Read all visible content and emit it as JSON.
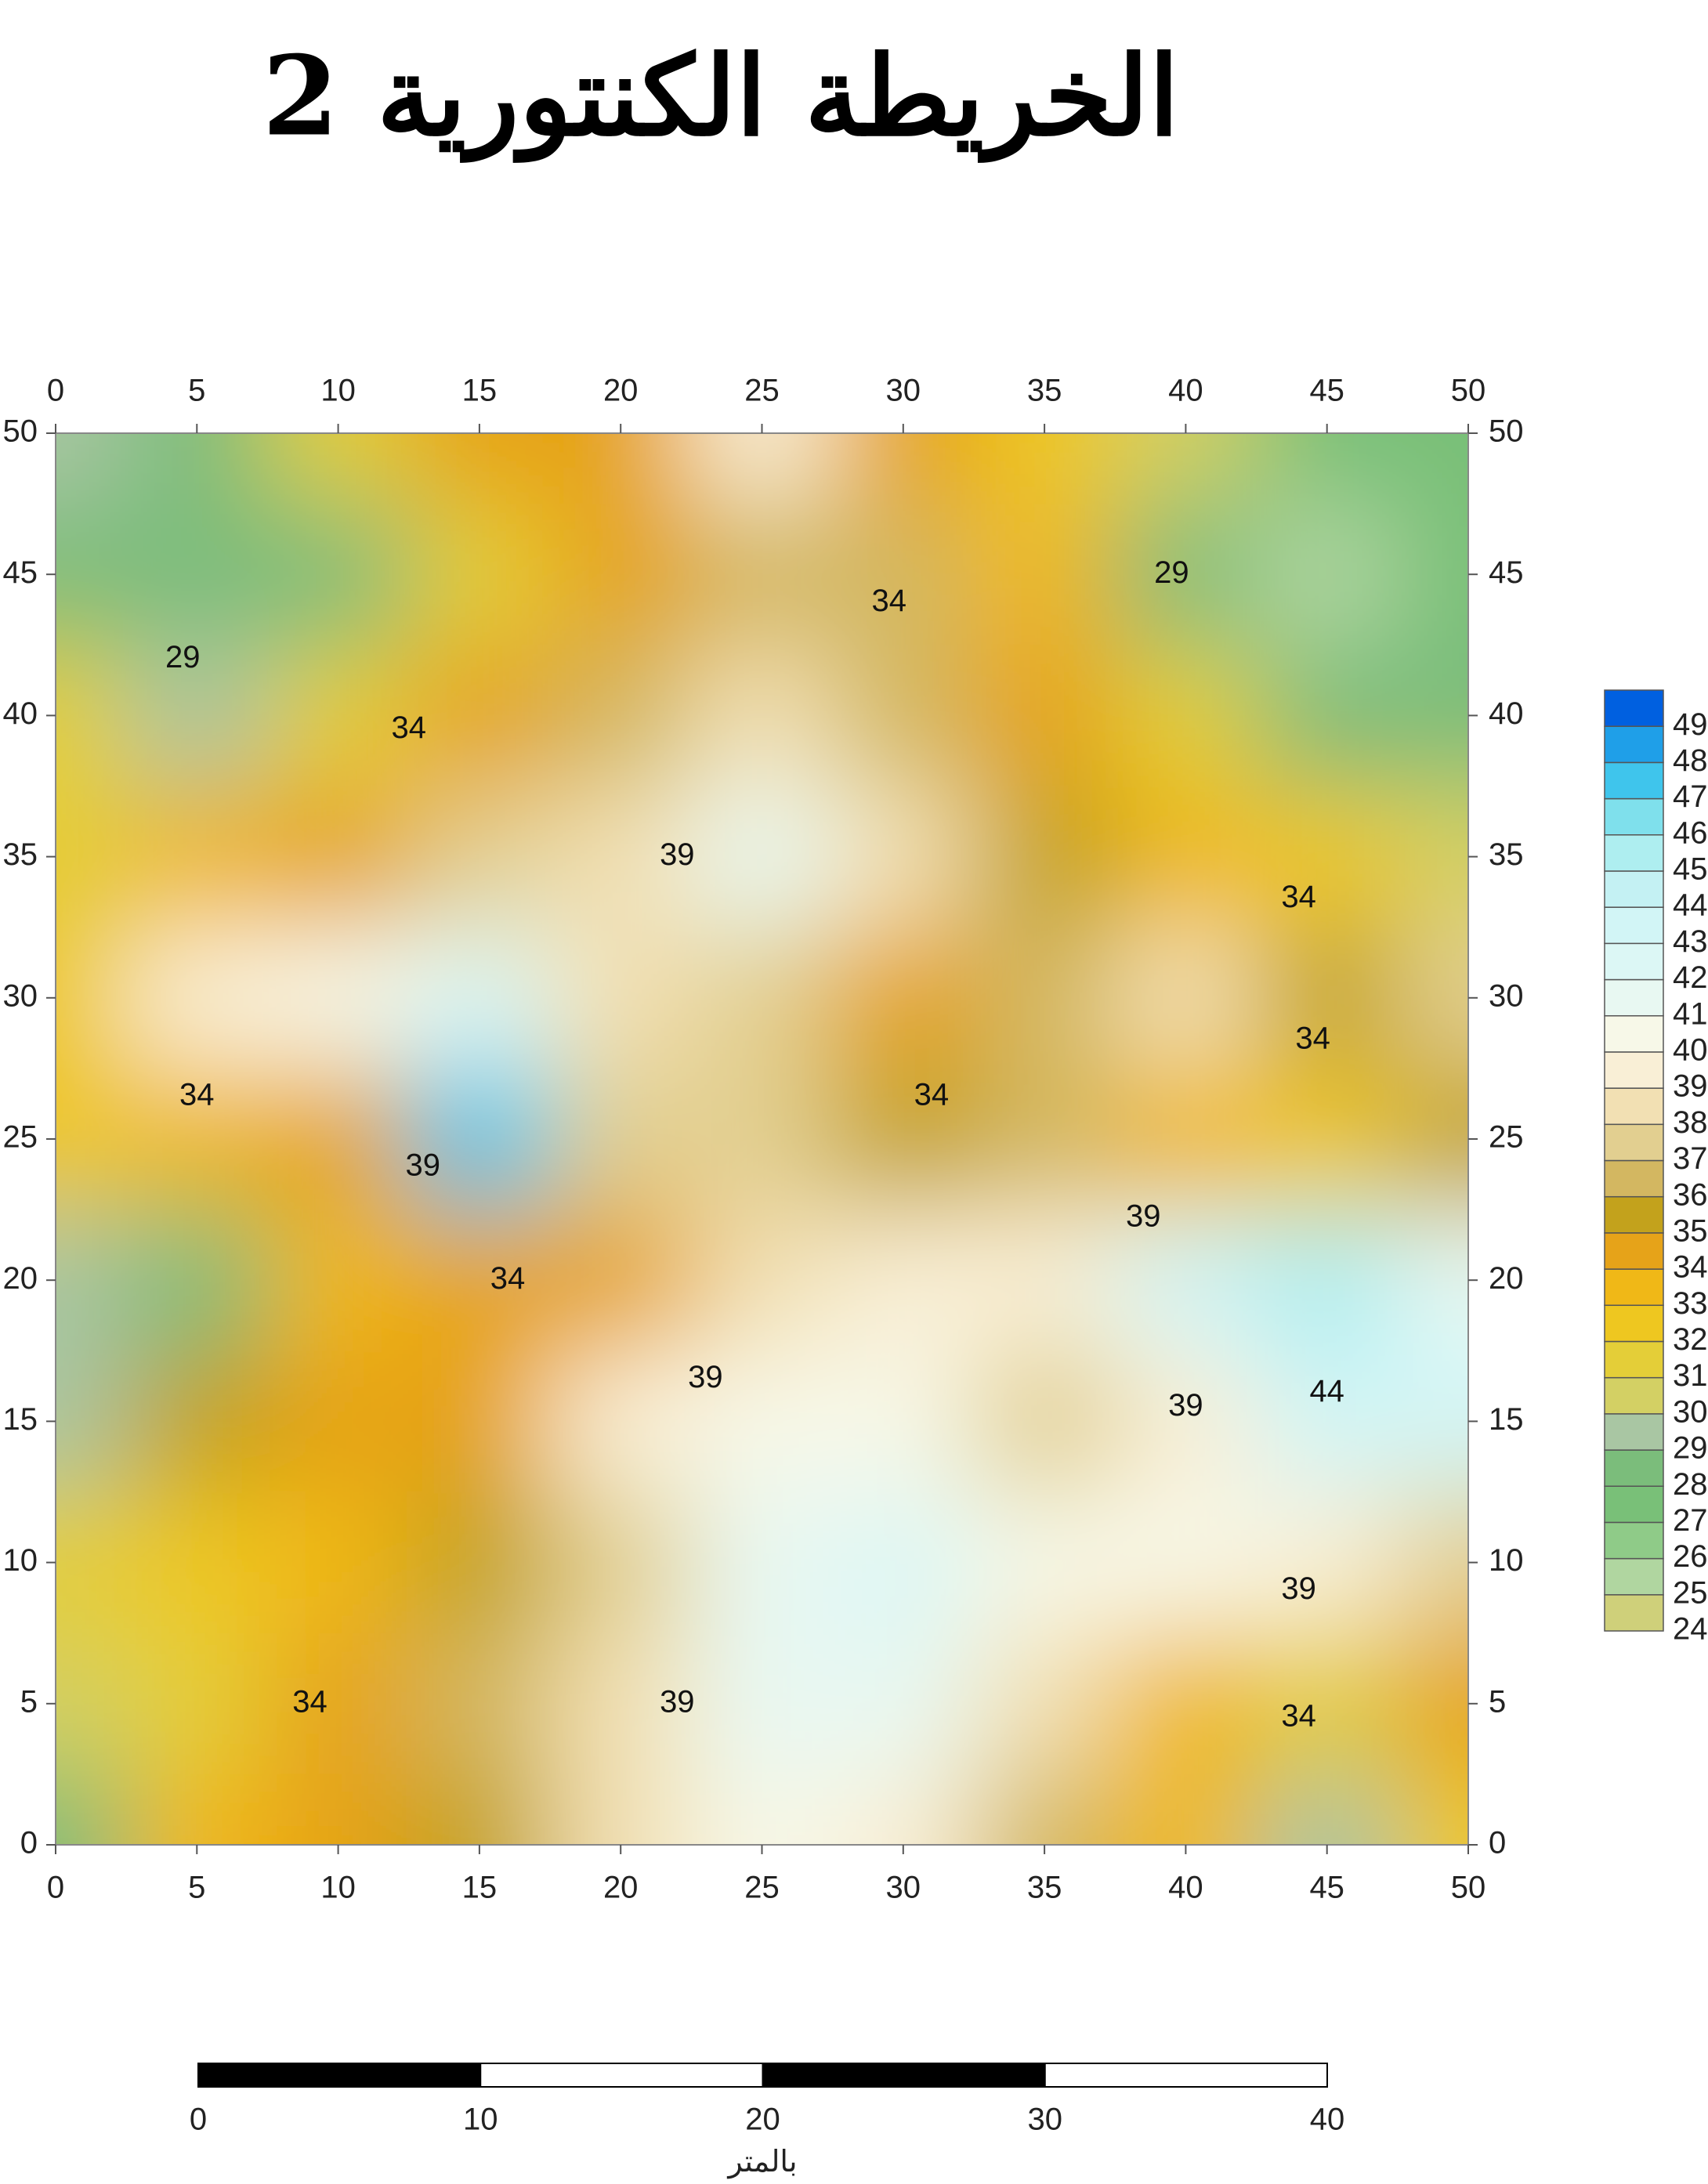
{
  "chart_data": {
    "type": "contour",
    "title": "الخريطة الكنتورية 2",
    "x": [
      0,
      5,
      10,
      15,
      20,
      25,
      30,
      35,
      40,
      45,
      50
    ],
    "y": [
      0,
      5,
      10,
      15,
      20,
      25,
      30,
      35,
      40,
      45,
      50
    ],
    "z": [
      [
        28,
        33,
        34,
        35,
        38,
        40,
        39,
        36,
        33,
        29,
        32
      ],
      [
        30,
        31,
        34,
        36,
        38,
        41,
        41,
        38,
        33,
        31,
        34
      ],
      [
        31,
        32,
        33,
        35,
        37,
        41,
        42,
        40,
        40,
        39,
        37
      ],
      [
        29,
        35,
        34,
        34,
        39,
        40,
        40,
        37,
        39,
        43,
        43
      ],
      [
        29,
        28,
        33,
        34,
        34,
        38,
        39,
        39,
        43,
        45,
        41
      ],
      [
        32,
        33,
        34,
        47,
        37,
        37,
        35,
        36,
        33,
        32,
        35
      ],
      [
        32,
        39,
        40,
        42,
        38,
        37,
        34,
        36,
        38,
        35,
        37
      ],
      [
        31,
        33,
        34,
        37,
        38,
        41,
        38,
        35,
        33,
        32,
        30
      ],
      [
        31,
        29,
        31,
        34,
        36,
        38,
        36,
        34,
        31,
        28,
        28
      ],
      [
        28,
        28,
        28,
        31,
        34,
        36,
        36,
        33,
        28,
        25,
        27
      ],
      [
        29,
        28,
        31,
        34,
        34,
        39,
        34,
        32,
        30,
        27,
        27
      ]
    ],
    "xlim": [
      0,
      50
    ],
    "ylim": [
      0,
      50
    ],
    "xticks": [
      0,
      5,
      10,
      15,
      20,
      25,
      30,
      35,
      40,
      45,
      50
    ],
    "yticks": [
      0,
      5,
      10,
      15,
      20,
      25,
      30,
      35,
      40,
      45,
      50
    ],
    "levels": [
      24,
      25,
      26,
      27,
      28,
      29,
      30,
      31,
      32,
      33,
      34,
      35,
      36,
      37,
      38,
      39,
      40,
      41,
      42,
      43,
      44,
      45,
      46,
      47,
      48,
      49
    ],
    "level_colors": [
      "#cfd07a",
      "#b0d6a0",
      "#8fcb88",
      "#79c078",
      "#7bbd7b",
      "#a9c6a3",
      "#d3d064",
      "#e4ce38",
      "#eec720",
      "#f0b817",
      "#e6a319",
      "#c3a21c",
      "#d3b761",
      "#e2cf90",
      "#f2e0b3",
      "#f9efd6",
      "#f7f8e8",
      "#e8f8f2",
      "#dcf7f5",
      "#d2f5f6",
      "#c4f1f3",
      "#aeeef0",
      "#7fe0ec",
      "#3fc5ec",
      "#1f9fe8",
      "#0060e0"
    ],
    "contour_labels": [
      {
        "x": 4.5,
        "y": 42,
        "value": 29
      },
      {
        "x": 12.5,
        "y": 39.5,
        "value": 34
      },
      {
        "x": 5,
        "y": 26.5,
        "value": 34
      },
      {
        "x": 13,
        "y": 24,
        "value": 39
      },
      {
        "x": 16,
        "y": 20,
        "value": 34
      },
      {
        "x": 22,
        "y": 35,
        "value": 39
      },
      {
        "x": 29.5,
        "y": 44,
        "value": 34
      },
      {
        "x": 39.5,
        "y": 45,
        "value": 29
      },
      {
        "x": 44,
        "y": 33.5,
        "value": 34
      },
      {
        "x": 44.5,
        "y": 28.5,
        "value": 34
      },
      {
        "x": 31,
        "y": 26.5,
        "value": 34
      },
      {
        "x": 38.5,
        "y": 22.2,
        "value": 39
      },
      {
        "x": 23,
        "y": 16.5,
        "value": 39
      },
      {
        "x": 40,
        "y": 15.5,
        "value": 39
      },
      {
        "x": 45,
        "y": 16,
        "value": 44
      },
      {
        "x": 44,
        "y": 9,
        "value": 39
      },
      {
        "x": 9,
        "y": 5,
        "value": 34
      },
      {
        "x": 22,
        "y": 5,
        "value": 39
      },
      {
        "x": 44,
        "y": 4.5,
        "value": 34
      }
    ],
    "scale_bar": {
      "ticks": [
        0,
        10,
        20,
        30,
        40
      ],
      "unit": "بالمتر"
    }
  }
}
